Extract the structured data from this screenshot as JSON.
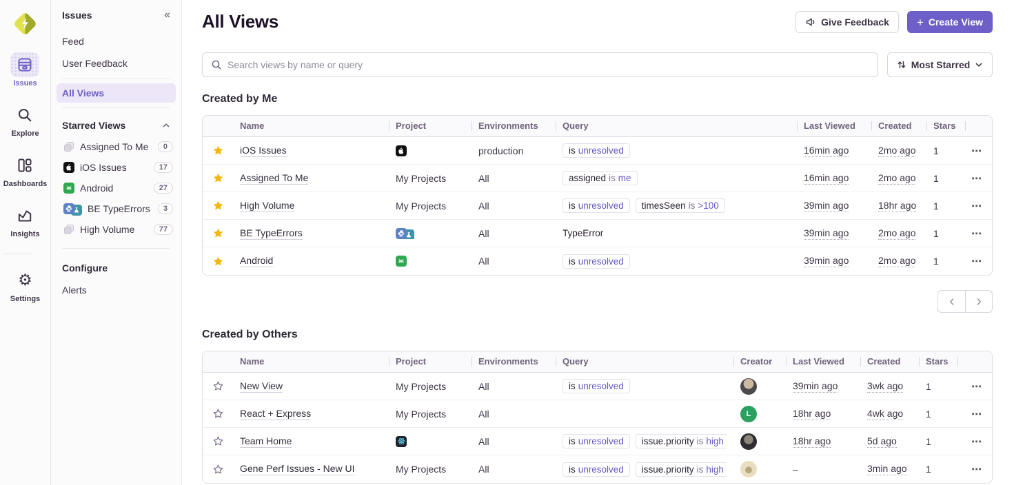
{
  "colors": {
    "accent": "#6D5FC7",
    "star_filled": "#F2B712",
    "star_outline": "#80708F"
  },
  "rail": {
    "logo_icon": "sentry-logo",
    "items": [
      {
        "label": "Issues",
        "icon": "issues-icon",
        "active": true,
        "divider_after": false
      },
      {
        "label": "Explore",
        "icon": "explore-icon",
        "active": false,
        "divider_after": false
      },
      {
        "label": "Dashboards",
        "icon": "dashboards-icon",
        "active": false,
        "divider_after": false
      },
      {
        "label": "Insights",
        "icon": "insights-icon",
        "active": false,
        "divider_after": true
      },
      {
        "label": "Settings",
        "icon": "settings-icon",
        "active": false,
        "divider_after": false
      }
    ]
  },
  "sidebar": {
    "title": "Issues",
    "collapse_icon": "collapse-chevrons-icon",
    "nav_items": [
      {
        "label": "Feed"
      },
      {
        "label": "User Feedback"
      }
    ],
    "all_views_label": "All Views",
    "starred_header": "Starred Views",
    "starred_collapse_icon": "chevron-up-icon",
    "starred_items": [
      {
        "label": "Assigned To Me",
        "count": "0",
        "icon": "stacked-projects-icon"
      },
      {
        "label": "iOS Issues",
        "count": "17",
        "icon": "apple-project-icon"
      },
      {
        "label": "Android",
        "count": "27",
        "icon": "android-project-icon"
      },
      {
        "label": "BE TypeErrors",
        "count": "3",
        "icon": "python-flask-project-icon"
      },
      {
        "label": "High Volume",
        "count": "77",
        "icon": "stacked-projects-icon"
      }
    ],
    "configure_header": "Configure",
    "configure_items": [
      {
        "label": "Alerts"
      }
    ]
  },
  "header": {
    "title": "All Views",
    "feedback_label": "Give Feedback",
    "create_label": "Create View"
  },
  "toolbar": {
    "search_placeholder": "Search views by name or query",
    "sort_label": "Most Starred"
  },
  "created_by_me": {
    "heading": "Created by Me",
    "columns": [
      "Name",
      "Project",
      "Environments",
      "Query",
      "Last Viewed",
      "Created",
      "Stars"
    ],
    "rows": [
      {
        "starred": true,
        "name": "iOS Issues",
        "project": {
          "type": "icons",
          "icons": [
            "apple"
          ]
        },
        "environments": "production",
        "query": [
          {
            "chip": true,
            "tokens": [
              [
                "is",
                "k"
              ],
              [
                "unresolved",
                "v"
              ]
            ]
          }
        ],
        "last_viewed": "16min ago",
        "created": "2mo ago",
        "stars": "1"
      },
      {
        "starred": true,
        "name": "Assigned To Me",
        "project": {
          "type": "text",
          "label": "My Projects"
        },
        "environments": "All",
        "query": [
          {
            "chip": true,
            "tokens": [
              [
                "assigned",
                "k"
              ],
              [
                "is",
                "o"
              ],
              [
                "me",
                "v"
              ]
            ]
          }
        ],
        "last_viewed": "16min ago",
        "created": "2mo ago",
        "stars": "1"
      },
      {
        "starred": true,
        "name": "High Volume",
        "project": {
          "type": "text",
          "label": "My Projects"
        },
        "environments": "All",
        "query": [
          {
            "chip": true,
            "tokens": [
              [
                "is",
                "k"
              ],
              [
                "unresolved",
                "v"
              ]
            ]
          },
          {
            "chip": true,
            "tokens": [
              [
                "timesSeen",
                "k"
              ],
              [
                "is",
                "o"
              ],
              [
                ">100",
                "v"
              ]
            ]
          }
        ],
        "last_viewed": "39min ago",
        "created": "18hr ago",
        "stars": "1"
      },
      {
        "starred": true,
        "name": "BE TypeErrors",
        "project": {
          "type": "icons",
          "icons": [
            "python",
            "flask"
          ]
        },
        "environments": "All",
        "query": [
          {
            "chip": false,
            "tokens": [
              [
                "TypeError",
                "k"
              ]
            ]
          }
        ],
        "last_viewed": "39min ago",
        "created": "2mo ago",
        "stars": "1"
      },
      {
        "starred": true,
        "name": "Android",
        "project": {
          "type": "icons",
          "icons": [
            "android"
          ]
        },
        "environments": "All",
        "query": [
          {
            "chip": true,
            "tokens": [
              [
                "is",
                "k"
              ],
              [
                "unresolved",
                "v"
              ]
            ]
          }
        ],
        "last_viewed": "39min ago",
        "created": "2mo ago",
        "stars": "1"
      }
    ]
  },
  "pagination": {
    "prev_icon": "chevron-left-icon",
    "next_icon": "chevron-right-icon"
  },
  "created_by_others": {
    "heading": "Created by Others",
    "columns": [
      "Name",
      "Project",
      "Environments",
      "Query",
      "Creator",
      "Last Viewed",
      "Created",
      "Stars"
    ],
    "rows": [
      {
        "starred": false,
        "name": "New View",
        "project": {
          "type": "text",
          "label": "My Projects"
        },
        "environments": "All",
        "query": [
          {
            "chip": true,
            "tokens": [
              [
                "is",
                "k"
              ],
              [
                "unresolved",
                "v"
              ]
            ]
          }
        ],
        "creator": {
          "kind": "photo1"
        },
        "last_viewed": "39min ago",
        "created": "3wk ago",
        "stars": "1"
      },
      {
        "starred": false,
        "name": "React + Express",
        "project": {
          "type": "text",
          "label": "My Projects"
        },
        "environments": "All",
        "query": [],
        "creator": {
          "kind": "initial",
          "initial": "L"
        },
        "last_viewed": "18hr ago",
        "created": "4wk ago",
        "stars": "1"
      },
      {
        "starred": false,
        "name": "Team Home",
        "project": {
          "type": "icons",
          "icons": [
            "react"
          ]
        },
        "environments": "All",
        "query": [
          {
            "chip": true,
            "tokens": [
              [
                "is",
                "k"
              ],
              [
                "unresolved",
                "v"
              ]
            ]
          },
          {
            "chip": true,
            "tokens": [
              [
                "issue.priority",
                "k"
              ],
              [
                "is",
                "o"
              ],
              [
                "high",
                "v"
              ]
            ]
          }
        ],
        "creator": {
          "kind": "photo2"
        },
        "last_viewed": "18hr ago",
        "created": "5d ago",
        "stars": "1"
      },
      {
        "starred": false,
        "name": "Gene Perf Issues - New UI",
        "project": {
          "type": "text",
          "label": "My Projects"
        },
        "environments": "All",
        "query": [
          {
            "chip": true,
            "tokens": [
              [
                "is",
                "k"
              ],
              [
                "unresolved",
                "v"
              ]
            ]
          },
          {
            "chip": true,
            "tokens": [
              [
                "issue.priority",
                "k"
              ],
              [
                "is",
                "o"
              ],
              [
                "high",
                "v"
              ]
            ]
          }
        ],
        "creator": {
          "kind": "photo3"
        },
        "last_viewed": "–",
        "created": "3min ago",
        "stars": "1"
      }
    ]
  }
}
